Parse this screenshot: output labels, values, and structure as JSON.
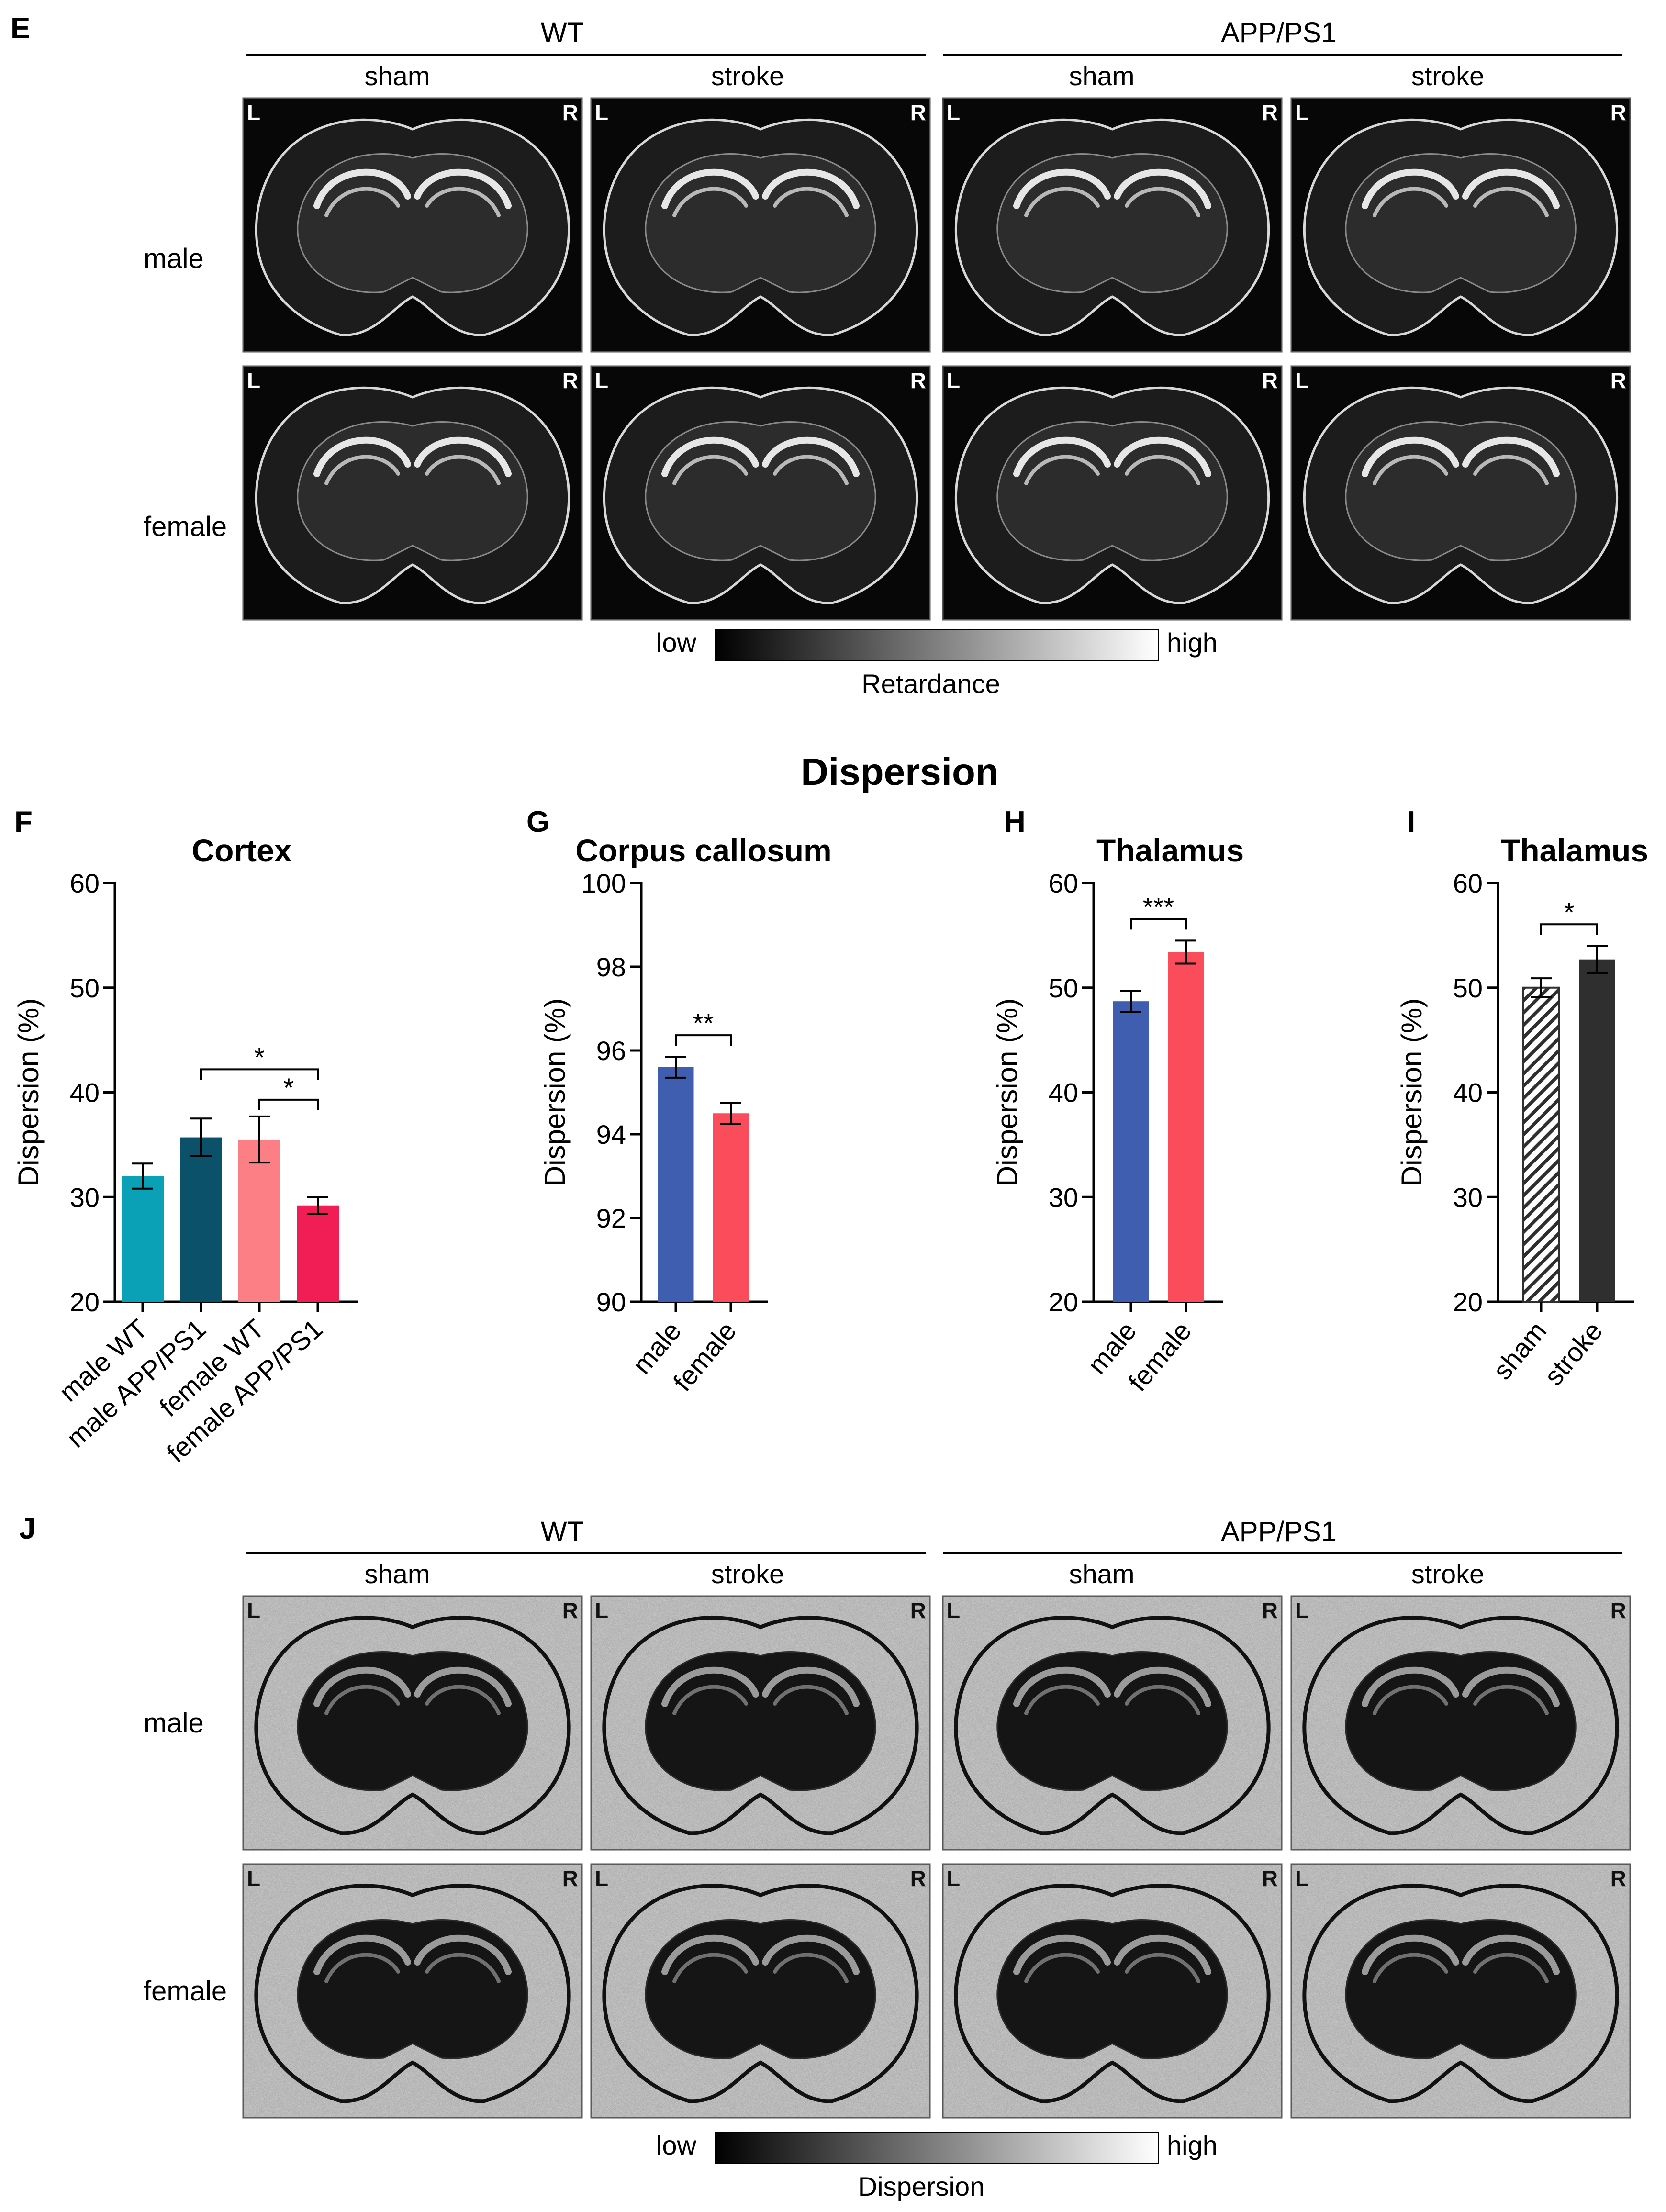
{
  "dispersion_heading": "Dispersion",
  "panel_E": {
    "letter": "E",
    "groups": [
      "WT",
      "APP/PS1"
    ],
    "conditions": [
      "sham",
      "stroke",
      "sham",
      "stroke"
    ],
    "rows": [
      "male",
      "female"
    ],
    "side_left": "L",
    "side_right": "R",
    "scale_low": "low",
    "scale_high": "high",
    "scale_title": "Retardance"
  },
  "panel_J": {
    "letter": "J",
    "groups": [
      "WT",
      "APP/PS1"
    ],
    "conditions": [
      "sham",
      "stroke",
      "sham",
      "stroke"
    ],
    "rows": [
      "male",
      "female"
    ],
    "side_left": "L",
    "side_right": "R",
    "scale_low": "low",
    "scale_high": "high",
    "scale_title": "Dispersion"
  },
  "colors": {
    "teal": "#0aa0b6",
    "dark_teal": "#0b5169",
    "salmon": "#fb7f84",
    "crimson": "#f01e54",
    "blue": "#3f5eb0",
    "red": "#fb4c5c",
    "dark": "#2f2f2f"
  },
  "chart_data": [
    {
      "letter": "F",
      "type": "bar",
      "title": "Cortex",
      "ylabel": "Dispersion (%)",
      "ylim": [
        20,
        60
      ],
      "yticks": [
        20,
        30,
        40,
        50,
        60
      ],
      "categories": [
        "male WT",
        "male APP/PS1",
        "female WT",
        "female APP/PS1"
      ],
      "values": [
        32.0,
        35.7,
        35.5,
        29.2
      ],
      "errors": [
        1.2,
        1.8,
        2.2,
        0.8
      ],
      "bar_colors": [
        "#0aa0b6",
        "#0b5169",
        "#fb7f84",
        "#f01e54"
      ],
      "significance": [
        {
          "from": 1,
          "to": 3,
          "label": "*"
        },
        {
          "from": 2,
          "to": 3,
          "label": "*"
        }
      ]
    },
    {
      "letter": "G",
      "type": "bar",
      "title": "Corpus callosum",
      "ylabel": "Dispersion (%)",
      "ylim": [
        90,
        100
      ],
      "yticks": [
        90,
        92,
        94,
        96,
        98,
        100
      ],
      "categories": [
        "male",
        "female"
      ],
      "values": [
        95.6,
        94.5
      ],
      "errors": [
        0.25,
        0.25
      ],
      "bar_colors": [
        "#3f5eb0",
        "#fb4c5c"
      ],
      "significance": [
        {
          "from": 0,
          "to": 1,
          "label": "**"
        }
      ]
    },
    {
      "letter": "H",
      "type": "bar",
      "title": "Thalamus",
      "ylabel": "Dispersion (%)",
      "ylim": [
        20,
        60
      ],
      "yticks": [
        20,
        30,
        40,
        50,
        60
      ],
      "categories": [
        "male",
        "female"
      ],
      "values": [
        48.7,
        53.4
      ],
      "errors": [
        1.0,
        1.1
      ],
      "bar_colors": [
        "#3f5eb0",
        "#fb4c5c"
      ],
      "significance": [
        {
          "from": 0,
          "to": 1,
          "label": "***"
        }
      ]
    },
    {
      "letter": "I",
      "type": "bar",
      "title": "Thalamus",
      "ylabel": "Dispersion (%)",
      "ylim": [
        20,
        60
      ],
      "yticks": [
        20,
        30,
        40,
        50,
        60
      ],
      "categories": [
        "sham",
        "stroke"
      ],
      "values": [
        50.0,
        52.7
      ],
      "errors": [
        0.9,
        1.3
      ],
      "bar_colors": [
        "#2f2f2f",
        "#2f2f2f"
      ],
      "bar_patterns": [
        "hatch",
        "solid"
      ],
      "significance": [
        {
          "from": 0,
          "to": 1,
          "label": "*"
        }
      ]
    }
  ]
}
